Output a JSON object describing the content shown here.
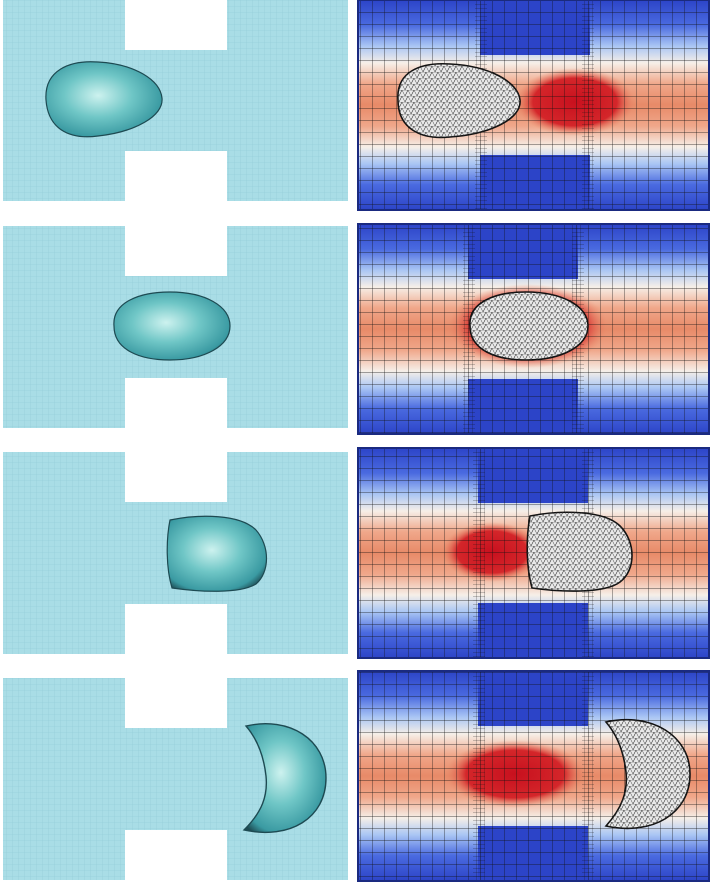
{
  "figure": {
    "rows": [
      {
        "id": "stage-1",
        "droplet_shape": "bullet",
        "wake": "trailing-right"
      },
      {
        "id": "stage-2",
        "droplet_shape": "oval",
        "wake": "surrounding"
      },
      {
        "id": "stage-3",
        "droplet_shape": "bullet-flat-rear",
        "wake": "trailing-left"
      },
      {
        "id": "stage-4",
        "droplet_shape": "crescent",
        "wake": "trailing-left"
      }
    ],
    "columns": [
      "surface-view",
      "velocity-field-with-adaptive-mesh"
    ],
    "colors": {
      "channel_fluid": "#a9dde6",
      "channel_grid": "#8fcad6",
      "droplet_fill": "#4fb3b7",
      "droplet_highlight": "#bfecea",
      "droplet_edge": "#1d4a52",
      "field_low": "#2c44c8",
      "field_mid_low": "#88aaf0",
      "field_neutral": "#f6efe8",
      "field_mid_high": "#f09070",
      "field_high": "#c8101e",
      "mesh_line": "#111111",
      "interface_fill": "#e9e9e9"
    }
  }
}
